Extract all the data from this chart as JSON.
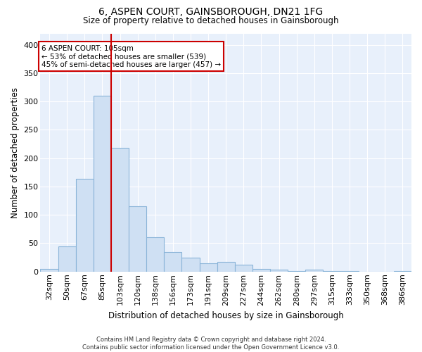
{
  "title": "6, ASPEN COURT, GAINSBOROUGH, DN21 1FG",
  "subtitle": "Size of property relative to detached houses in Gainsborough",
  "xlabel": "Distribution of detached houses by size in Gainsborough",
  "ylabel": "Number of detached properties",
  "footer_line1": "Contains HM Land Registry data © Crown copyright and database right 2024.",
  "footer_line2": "Contains public sector information licensed under the Open Government Licence v3.0.",
  "annotation_line1": "6 ASPEN COURT: 105sqm",
  "annotation_line2": "← 53% of detached houses are smaller (539)",
  "annotation_line3": "45% of semi-detached houses are larger (457) →",
  "bar_color": "#cfe0f3",
  "bar_edge_color": "#8ab4d8",
  "vline_color": "#cc0000",
  "background_color": "#e8f0fb",
  "grid_color": "#ffffff",
  "categories": [
    "32sqm",
    "50sqm",
    "67sqm",
    "85sqm",
    "103sqm",
    "120sqm",
    "138sqm",
    "156sqm",
    "173sqm",
    "191sqm",
    "209sqm",
    "227sqm",
    "244sqm",
    "262sqm",
    "280sqm",
    "297sqm",
    "315sqm",
    "333sqm",
    "350sqm",
    "368sqm",
    "386sqm"
  ],
  "values": [
    5,
    45,
    163,
    310,
    218,
    115,
    60,
    35,
    25,
    14,
    17,
    12,
    5,
    4,
    1,
    3,
    1,
    1,
    0,
    0,
    1
  ],
  "ylim": [
    0,
    420
  ],
  "yticks": [
    0,
    50,
    100,
    150,
    200,
    250,
    300,
    350,
    400
  ],
  "vline_x_index": 4,
  "figsize": [
    6.0,
    5.0
  ],
  "dpi": 100
}
